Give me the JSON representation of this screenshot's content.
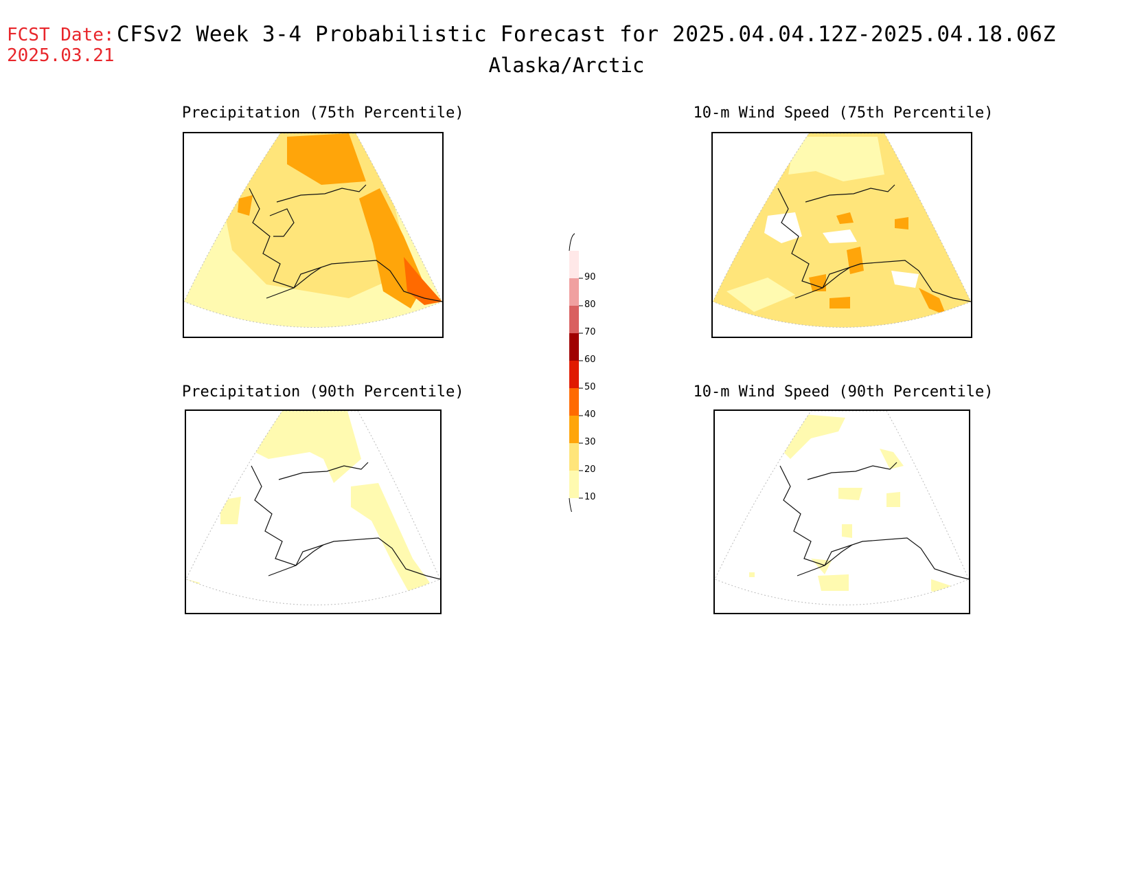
{
  "header": {
    "fcst_label": "FCST Date:",
    "fcst_date": "2025.03.21",
    "title": "CFSv2 Week 3-4 Probabilistic Forecast for 2025.04.04.12Z-2025.04.18.06Z",
    "region": "Alaska/Arctic"
  },
  "panels": {
    "precip75": {
      "title": "Precipitation (75th Percentile)"
    },
    "wind75": {
      "title": "10-m Wind Speed (75th Percentile)"
    },
    "precip90": {
      "title": "Precipitation (90th Percentile)"
    },
    "wind90": {
      "title": "10-m Wind Speed (90th Percentile)"
    }
  },
  "colorbar": {
    "levels": [
      "10",
      "20",
      "30",
      "40",
      "50",
      "60",
      "70",
      "80",
      "90"
    ],
    "colors": [
      "#fffab0",
      "#ffe57a",
      "#ffa50a",
      "#ff6a00",
      "#e01a00",
      "#a00000",
      "#d96060",
      "#f0a0a0",
      "#ffe8e8"
    ]
  }
}
